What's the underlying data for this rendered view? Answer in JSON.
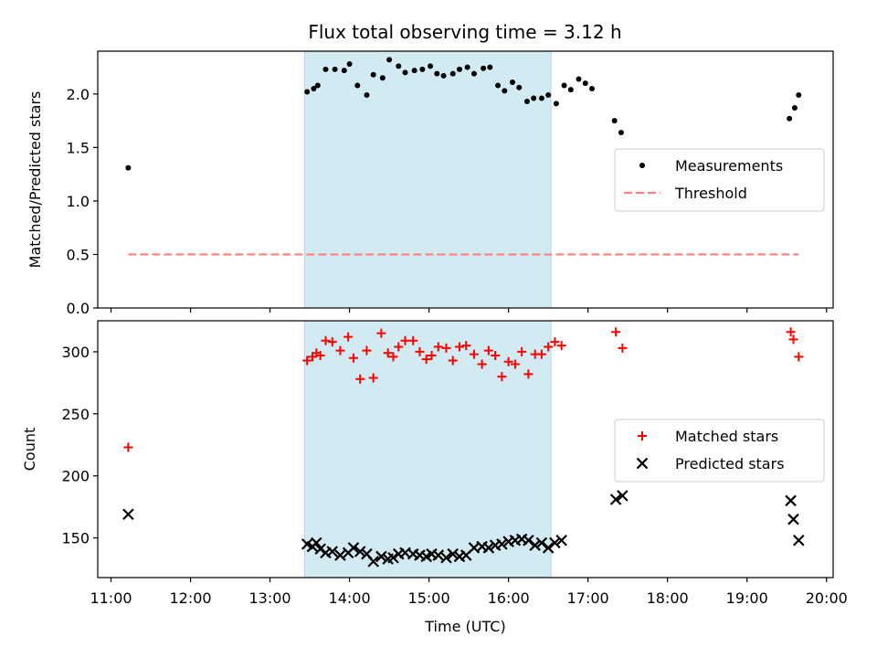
{
  "title": "Flux total observing time = 3.12 h",
  "chart_data": [
    {
      "type": "scatter",
      "name": "ratio-panel",
      "ylabel": "Matched/Predicted stars",
      "ylim": [
        0,
        2.4
      ],
      "xlim": [
        "10:50",
        "20:05"
      ],
      "yticks": [
        0.0,
        0.5,
        1.0,
        1.5,
        2.0
      ],
      "ytick_labels": [
        "0.0",
        "0.5",
        "1.0",
        "1.5",
        "2.0"
      ],
      "shaded_interval": [
        "13:26",
        "16:32"
      ],
      "shade_color": "#add8e6",
      "grid": false,
      "legend_position": "center-right",
      "series": [
        {
          "name": "Measurements",
          "marker": "dot",
          "color": "#000000",
          "points": [
            [
              "11:13",
              1.31
            ],
            [
              "13:28",
              2.02
            ],
            [
              "13:33",
              2.05
            ],
            [
              "13:36",
              2.08
            ],
            [
              "13:42",
              2.23
            ],
            [
              "13:49",
              2.23
            ],
            [
              "13:56",
              2.22
            ],
            [
              "14:00",
              2.28
            ],
            [
              "14:06",
              2.08
            ],
            [
              "14:13",
              1.99
            ],
            [
              "14:18",
              2.18
            ],
            [
              "14:25",
              2.15
            ],
            [
              "14:30",
              2.32
            ],
            [
              "14:37",
              2.26
            ],
            [
              "14:42",
              2.2
            ],
            [
              "14:49",
              2.22
            ],
            [
              "14:55",
              2.23
            ],
            [
              "15:01",
              2.26
            ],
            [
              "15:06",
              2.19
            ],
            [
              "15:11",
              2.17
            ],
            [
              "15:18",
              2.19
            ],
            [
              "15:23",
              2.23
            ],
            [
              "15:29",
              2.25
            ],
            [
              "15:34",
              2.19
            ],
            [
              "15:41",
              2.24
            ],
            [
              "15:46",
              2.25
            ],
            [
              "15:52",
              2.08
            ],
            [
              "15:57",
              2.03
            ],
            [
              "16:03",
              2.11
            ],
            [
              "16:08",
              2.06
            ],
            [
              "16:14",
              1.93
            ],
            [
              "16:19",
              1.96
            ],
            [
              "16:25",
              1.96
            ],
            [
              "16:30",
              1.99
            ],
            [
              "16:36",
              1.91
            ],
            [
              "16:42",
              2.08
            ],
            [
              "16:47",
              2.04
            ],
            [
              "16:53",
              2.14
            ],
            [
              "16:58",
              2.1
            ],
            [
              "17:03",
              2.05
            ],
            [
              "17:20",
              1.75
            ],
            [
              "17:25",
              1.64
            ],
            [
              "19:32",
              1.77
            ],
            [
              "19:36",
              1.87
            ],
            [
              "19:39",
              1.99
            ]
          ]
        },
        {
          "name": "Threshold",
          "style": "dashed",
          "color": "#ff7f7f",
          "points": [
            [
              "11:13",
              0.5
            ],
            [
              "19:39",
              0.5
            ]
          ]
        }
      ]
    },
    {
      "type": "scatter",
      "name": "count-panel",
      "xlabel": "Time (UTC)",
      "ylabel": "Count",
      "ylim": [
        118,
        325
      ],
      "xlim": [
        "10:50",
        "20:05"
      ],
      "yticks": [
        150,
        200,
        250,
        300
      ],
      "ytick_labels": [
        "150",
        "200",
        "250",
        "300"
      ],
      "xticks": [
        "11:00",
        "12:00",
        "13:00",
        "14:00",
        "15:00",
        "16:00",
        "17:00",
        "18:00",
        "19:00",
        "20:00"
      ],
      "xtick_labels": [
        "11:00",
        "12:00",
        "13:00",
        "14:00",
        "15:00",
        "16:00",
        "17:00",
        "18:00",
        "19:00",
        "20:00"
      ],
      "shaded_interval": [
        "13:26",
        "16:32"
      ],
      "shade_color": "#add8e6",
      "grid": false,
      "legend_position": "center-right",
      "series": [
        {
          "name": "Matched stars",
          "marker": "plus",
          "color": "#ff0000",
          "points": [
            [
              "11:13",
              223
            ],
            [
              "13:28",
              293
            ],
            [
              "13:32",
              296
            ],
            [
              "13:35",
              299
            ],
            [
              "13:38",
              297
            ],
            [
              "13:42",
              309
            ],
            [
              "13:47",
              308
            ],
            [
              "13:53",
              301
            ],
            [
              "13:59",
              312
            ],
            [
              "14:03",
              295
            ],
            [
              "14:08",
              278
            ],
            [
              "14:13",
              301
            ],
            [
              "14:18",
              279
            ],
            [
              "14:24",
              315
            ],
            [
              "14:29",
              299
            ],
            [
              "14:33",
              296
            ],
            [
              "14:37",
              304
            ],
            [
              "14:42",
              309
            ],
            [
              "14:48",
              309
            ],
            [
              "14:53",
              300
            ],
            [
              "14:58",
              294
            ],
            [
              "15:02",
              297
            ],
            [
              "15:07",
              304
            ],
            [
              "15:13",
              303
            ],
            [
              "15:18",
              293
            ],
            [
              "15:23",
              304
            ],
            [
              "15:28",
              305
            ],
            [
              "15:34",
              298
            ],
            [
              "15:40",
              290
            ],
            [
              "15:45",
              301
            ],
            [
              "15:50",
              297
            ],
            [
              "15:55",
              280
            ],
            [
              "16:00",
              292
            ],
            [
              "16:05",
              290
            ],
            [
              "16:10",
              300
            ],
            [
              "16:15",
              282
            ],
            [
              "16:20",
              298
            ],
            [
              "16:25",
              298
            ],
            [
              "16:30",
              304
            ],
            [
              "16:35",
              308
            ],
            [
              "16:40",
              305
            ],
            [
              "17:21",
              316
            ],
            [
              "17:26",
              303
            ],
            [
              "19:33",
              316
            ],
            [
              "19:35",
              310
            ],
            [
              "19:39",
              296
            ]
          ]
        },
        {
          "name": "Predicted stars",
          "marker": "x",
          "color": "#000000",
          "points": [
            [
              "11:13",
              169
            ],
            [
              "13:28",
              145
            ],
            [
              "13:32",
              143
            ],
            [
              "13:35",
              146
            ],
            [
              "13:38",
              141
            ],
            [
              "13:42",
              138
            ],
            [
              "13:47",
              139
            ],
            [
              "13:53",
              136
            ],
            [
              "13:59",
              138
            ],
            [
              "14:03",
              142
            ],
            [
              "14:08",
              139
            ],
            [
              "14:13",
              137
            ],
            [
              "14:18",
              131
            ],
            [
              "14:24",
              135
            ],
            [
              "14:29",
              133
            ],
            [
              "14:33",
              134
            ],
            [
              "14:37",
              137
            ],
            [
              "14:42",
              138
            ],
            [
              "14:48",
              137
            ],
            [
              "14:53",
              136
            ],
            [
              "14:58",
              135
            ],
            [
              "15:02",
              137
            ],
            [
              "15:07",
              136
            ],
            [
              "15:13",
              134
            ],
            [
              "15:18",
              137
            ],
            [
              "15:23",
              135
            ],
            [
              "15:28",
              136
            ],
            [
              "15:34",
              142
            ],
            [
              "15:40",
              143
            ],
            [
              "15:45",
              142
            ],
            [
              "15:50",
              144
            ],
            [
              "15:55",
              145
            ],
            [
              "16:00",
              147
            ],
            [
              "16:05",
              148
            ],
            [
              "16:10",
              149
            ],
            [
              "16:15",
              148
            ],
            [
              "16:20",
              144
            ],
            [
              "16:25",
              146
            ],
            [
              "16:30",
              142
            ],
            [
              "16:35",
              146
            ],
            [
              "16:40",
              148
            ],
            [
              "17:21",
              181
            ],
            [
              "17:26",
              184
            ],
            [
              "19:33",
              180
            ],
            [
              "19:35",
              165
            ],
            [
              "19:39",
              148
            ]
          ]
        }
      ]
    }
  ]
}
